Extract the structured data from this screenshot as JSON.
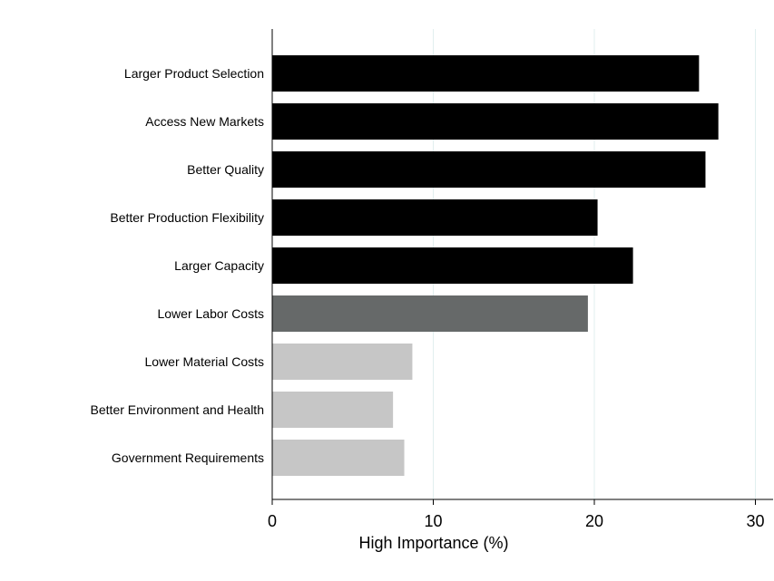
{
  "chart_data": {
    "type": "bar",
    "orientation": "horizontal",
    "categories": [
      "Larger Product Selection",
      "Access New Markets",
      "Better Quality",
      "Better Production Flexibility",
      "Larger Capacity",
      "Lower Labor Costs",
      "Lower Material Costs",
      "Better Environment and Health",
      "Government Requirements"
    ],
    "values": [
      26.5,
      27.7,
      26.9,
      20.2,
      22.4,
      19.6,
      8.7,
      7.5,
      8.2
    ],
    "bar_colors": [
      "#000000",
      "#000000",
      "#000000",
      "#000000",
      "#000000",
      "#666969",
      "#c6c6c6",
      "#c6c6c6",
      "#c6c6c6"
    ],
    "xlabel": "High Importance (%)",
    "xlim": [
      0,
      31
    ],
    "xticks": [
      0,
      10,
      20,
      30
    ],
    "xtick_labels": [
      "0",
      "10",
      "20",
      "30"
    ],
    "grid": true,
    "grid_color": "#e1efef",
    "legend": false
  }
}
